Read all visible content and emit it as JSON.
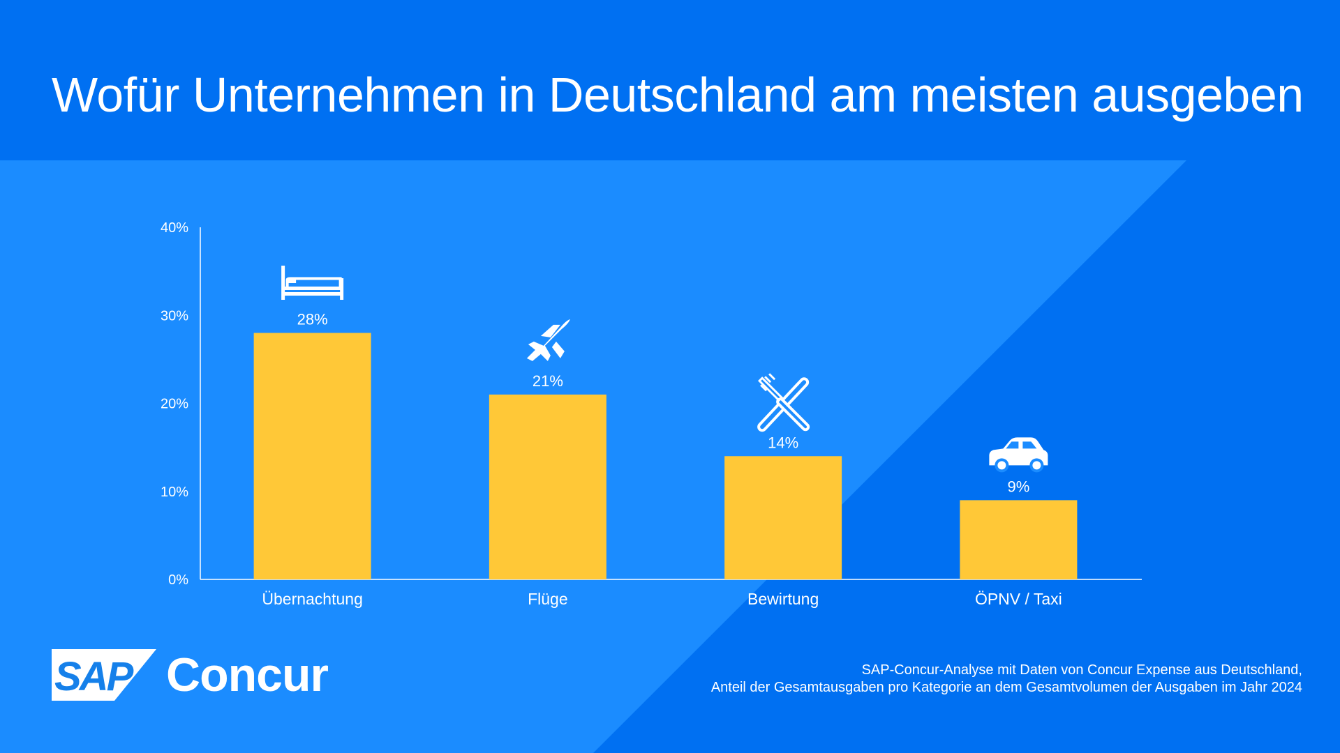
{
  "title": "Wofür Unternehmen in Deutschland am meisten ausgeben",
  "colors": {
    "dark_blue": "#0070f2",
    "light_blue": "#1b8cff",
    "bar": "#ffc837",
    "text": "#ffffff"
  },
  "chart_data": {
    "type": "bar",
    "categories": [
      "Übernachtung",
      "Flüge",
      "Bewirtung",
      "ÖPNV / Taxi"
    ],
    "values": [
      28,
      21,
      14,
      9
    ],
    "labels": [
      "28%",
      "21%",
      "14%",
      "9%"
    ],
    "icons": [
      "bed-icon",
      "airplane-icon",
      "fork-knife-icon",
      "car-icon"
    ],
    "ylim": [
      0,
      40
    ],
    "yticks": [
      "0%",
      "10%",
      "20%",
      "30%",
      "40%"
    ],
    "title": "Wofür Unternehmen in Deutschland am meisten ausgeben",
    "xlabel": "",
    "ylabel": "",
    "grid": false
  },
  "logo": {
    "badge": "SAP",
    "brand": "Concur"
  },
  "footnote": {
    "line1": "SAP-Concur-Analyse mit Daten von Concur Expense aus Deutschland,",
    "line2": "Anteil der Gesamtausgaben pro Kategorie an dem Gesamtvolumen der Ausgaben im Jahr 2024"
  }
}
